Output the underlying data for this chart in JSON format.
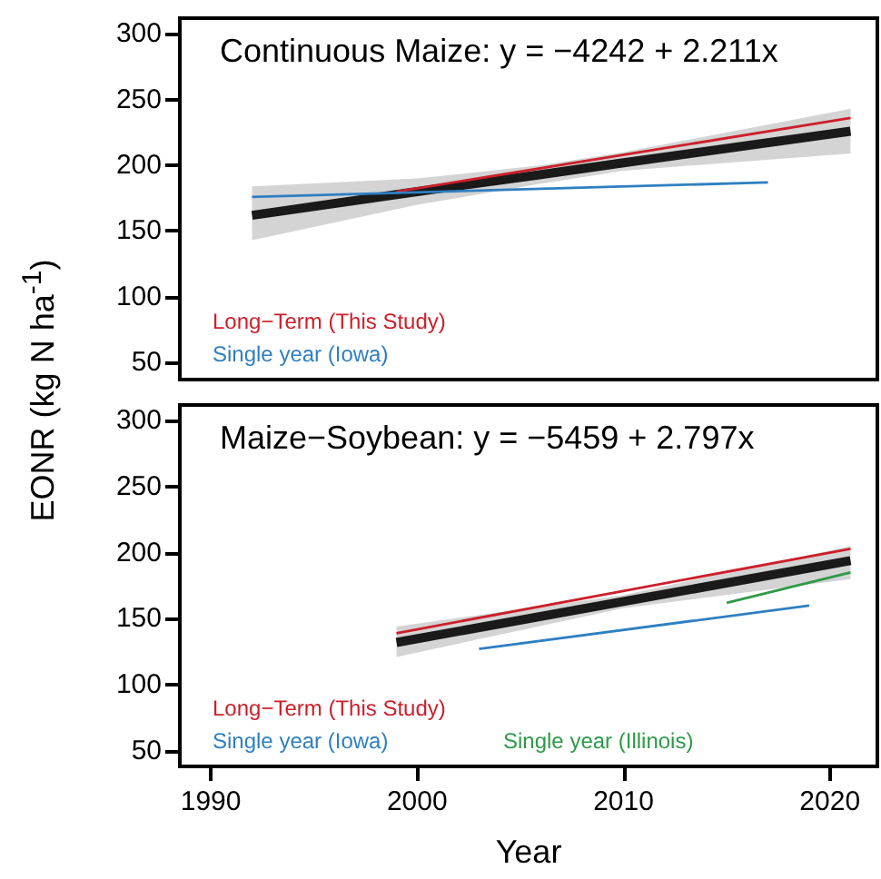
{
  "chart_data": [
    {
      "type": "line",
      "title": "Continuous Maize: y = −4242 + 2.211x",
      "ylabel": "EONR (kg N ha$^{-1}$)",
      "xlim": [
        1988.5,
        2022.3
      ],
      "xticks": [
        1990,
        2000,
        2010,
        2020
      ],
      "ylim": [
        37,
        312
      ],
      "yticks": [
        50,
        100,
        150,
        200,
        250,
        300
      ],
      "tick_labels": "y",
      "grid": false,
      "legend": "bottom left",
      "marker": "none",
      "line_style": "solid",
      "series": [
        {
          "color": "#1a1a1a",
          "x": [
            1992,
            2000,
            2006,
            2010,
            2021
          ],
          "values": [
            162,
            180,
            193,
            202,
            226
          ],
          "lower": [
            143,
            170,
            186,
            196,
            209
          ],
          "upper": [
            184,
            190,
            200,
            210,
            243
          ]
        },
        {
          "name": "Long−Term (This Study)",
          "color": "#cc1f2a",
          "x": [
            1999,
            2021
          ],
          "values": [
            180,
            236
          ]
        },
        {
          "name": "Single year (Iowa)",
          "color": "#2f7fc1",
          "x": [
            1992,
            2017
          ],
          "values": [
            176,
            187
          ]
        }
      ]
    },
    {
      "type": "line",
      "title": "Maize−Soybean: y = −5459 + 2.797x",
      "xlabel": "Year",
      "xlim": [
        1988.5,
        2022.3
      ],
      "xticks": [
        1990,
        2000,
        2010,
        2020
      ],
      "ylim": [
        38,
        312
      ],
      "yticks": [
        50,
        100,
        150,
        200,
        250,
        300
      ],
      "grid": false,
      "legend": "bottom left",
      "marker": "none",
      "line_style": "solid",
      "series": [
        {
          "color": "#1a1a1a",
          "x": [
            1999,
            2010,
            2021
          ],
          "values": [
            132,
            163,
            194
          ],
          "lower": [
            121,
            158,
            180
          ],
          "upper": [
            144,
            168,
            205
          ]
        },
        {
          "name": "Long−Term (This Study)",
          "color": "#cc1f2a",
          "x": [
            1999,
            2021
          ],
          "values": [
            139,
            203
          ]
        },
        {
          "name": "Single year (Iowa)",
          "color": "#2f7fc1",
          "x": [
            2003,
            2019
          ],
          "values": [
            127,
            160
          ]
        },
        {
          "name": "Single year (Illinois)",
          "color": "#2e9a48",
          "x": [
            2015,
            2021
          ],
          "values": [
            162,
            185
          ]
        }
      ]
    }
  ]
}
